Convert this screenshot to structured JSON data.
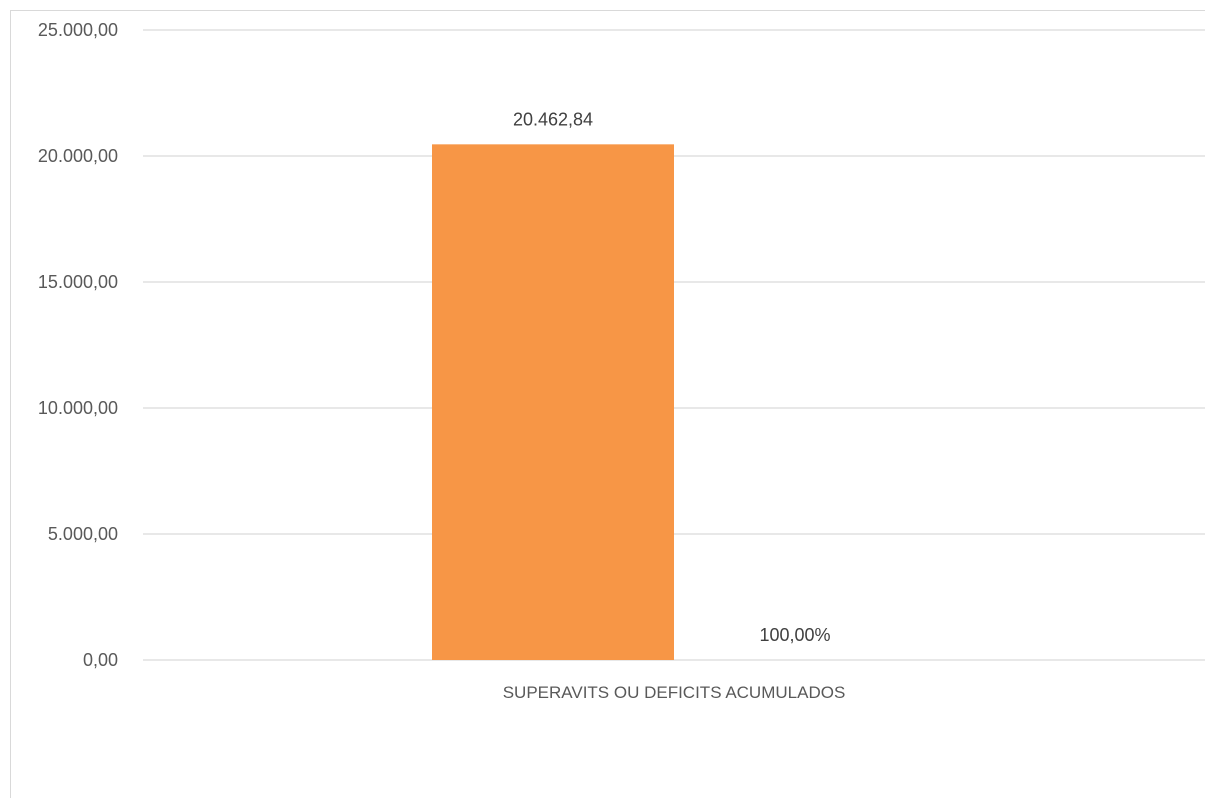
{
  "chart_data": {
    "type": "bar",
    "title": "",
    "xlabel": "",
    "ylabel": "",
    "categories": [
      "SUPERAVITS OU DEFICITS ACUMULADOS"
    ],
    "series": [
      {
        "values": [
          20462.84
        ],
        "color": "#f79646",
        "data_labels": [
          "20.462,84"
        ]
      },
      {
        "values": [
          0
        ],
        "color": "#9bbb59",
        "data_labels": [
          "100,00%"
        ]
      }
    ],
    "ylim": [
      0,
      25000
    ],
    "y_ticks": [
      0,
      5000,
      10000,
      15000,
      20000,
      25000
    ],
    "y_tick_labels": [
      "0,00",
      "5.000,00",
      "10.000,00",
      "15.000,00",
      "20.000,00",
      "25.000,00"
    ],
    "grid": true,
    "legend": "none"
  }
}
